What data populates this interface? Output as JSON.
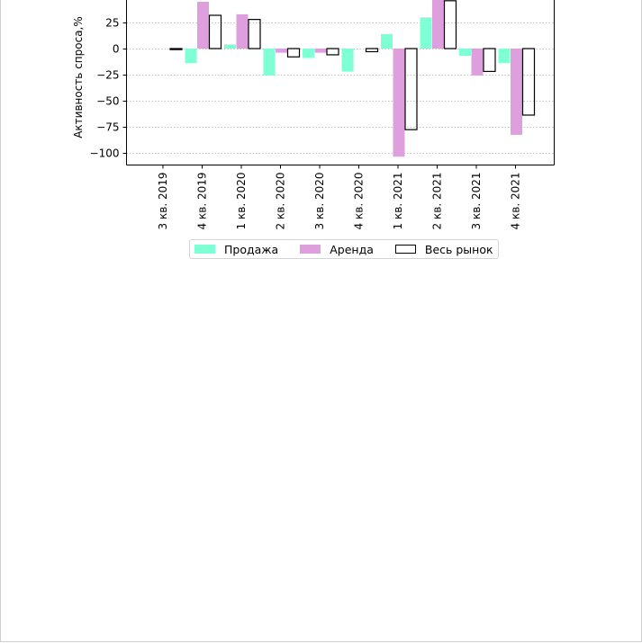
{
  "chart_data": {
    "type": "bar",
    "title": "",
    "xlabel": "",
    "ylabel": "Активность спроса,%",
    "ylim": [
      -112,
      50
    ],
    "yticks": [
      25,
      0,
      -25,
      -50,
      -75,
      -100
    ],
    "ytick_labels": [
      "25",
      "0",
      "−25",
      "−50",
      "−75",
      "−100"
    ],
    "grid": "horizontal dotted",
    "legend_position": "bottom-center",
    "categories": [
      "3 кв. 2019",
      "4 кв. 2019",
      "1 кв. 2020",
      "2 кв. 2020",
      "3 кв. 2020",
      "4 кв. 2020",
      "1 кв. 2021",
      "2 кв. 2021",
      "3 кв. 2021",
      "4 кв. 2021"
    ],
    "series": [
      {
        "name": "Продажа",
        "color": "#7fffd4",
        "style": "filled",
        "values": [
          0,
          -14,
          4,
          -26,
          -9,
          -22,
          14,
          30,
          -7,
          -14
        ]
      },
      {
        "name": "Аренда",
        "color": "#dda0dd",
        "style": "filled",
        "values": [
          0,
          45,
          33,
          -4,
          -4,
          0,
          -104,
          48,
          -26,
          -83
        ]
      },
      {
        "name": "Весь рынок",
        "color": "#000000",
        "style": "outline",
        "values": [
          -1,
          32,
          28,
          -8,
          -6,
          -3,
          -78,
          46,
          -22,
          -64
        ]
      }
    ]
  }
}
